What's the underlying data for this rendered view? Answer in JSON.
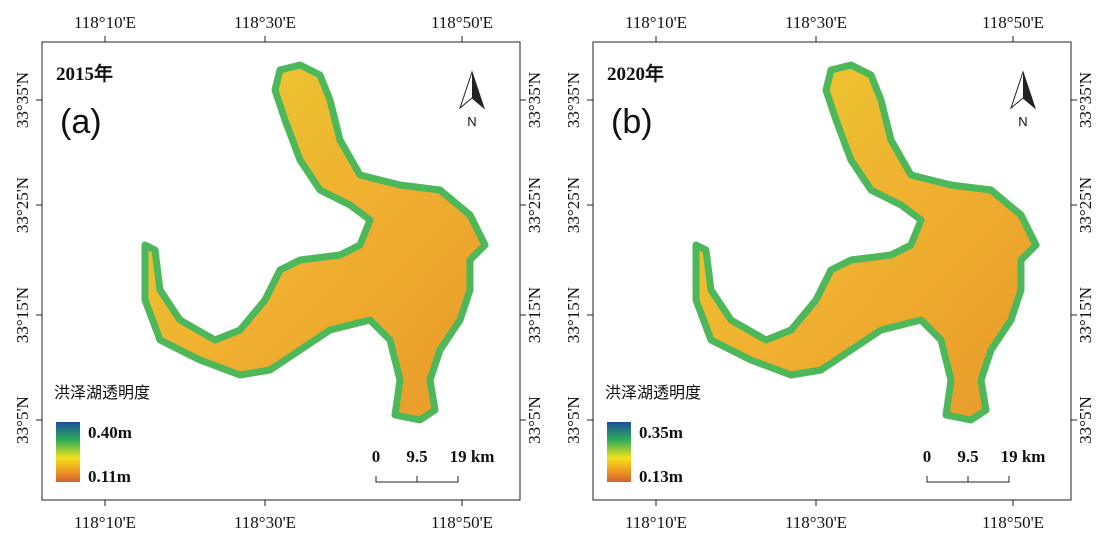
{
  "panels": [
    {
      "year_label": "2015年",
      "panel_label": "(a)",
      "legend_title": "洪泽湖透明度",
      "legend_max": "0.40m",
      "legend_min": "0.11m",
      "north": "N",
      "scale_labels": [
        "0",
        "9.5",
        "19 km"
      ],
      "top_ticks": [
        "118°10'E",
        "118°30'E",
        "118°50'E"
      ],
      "bottom_ticks": [
        "118°10'E",
        "118°30'E",
        "118°50'E"
      ],
      "left_ticks": [
        "33°35'N",
        "33°25'N",
        "33°15'N",
        "33°5'N"
      ],
      "right_ticks": [
        "33°35'N",
        "33°25'N",
        "33°15'N",
        "33°5'N"
      ]
    },
    {
      "year_label": "2020年",
      "panel_label": "(b)",
      "legend_title": "洪泽湖透明度",
      "legend_max": "0.35m",
      "legend_min": "0.13m",
      "north": "N",
      "scale_labels": [
        "0",
        "9.5",
        "19 km"
      ],
      "top_ticks": [
        "118°10'E",
        "118°30'E",
        "118°50'E"
      ],
      "bottom_ticks": [
        "118°10'E",
        "118°30'E",
        "118°50'E"
      ],
      "left_ticks": [
        "33°35'N",
        "33°25'N",
        "33°15'N",
        "33°5'N"
      ],
      "right_ticks": [
        "33°35'N",
        "33°25'N",
        "33°15'N",
        "33°5'N"
      ]
    }
  ]
}
